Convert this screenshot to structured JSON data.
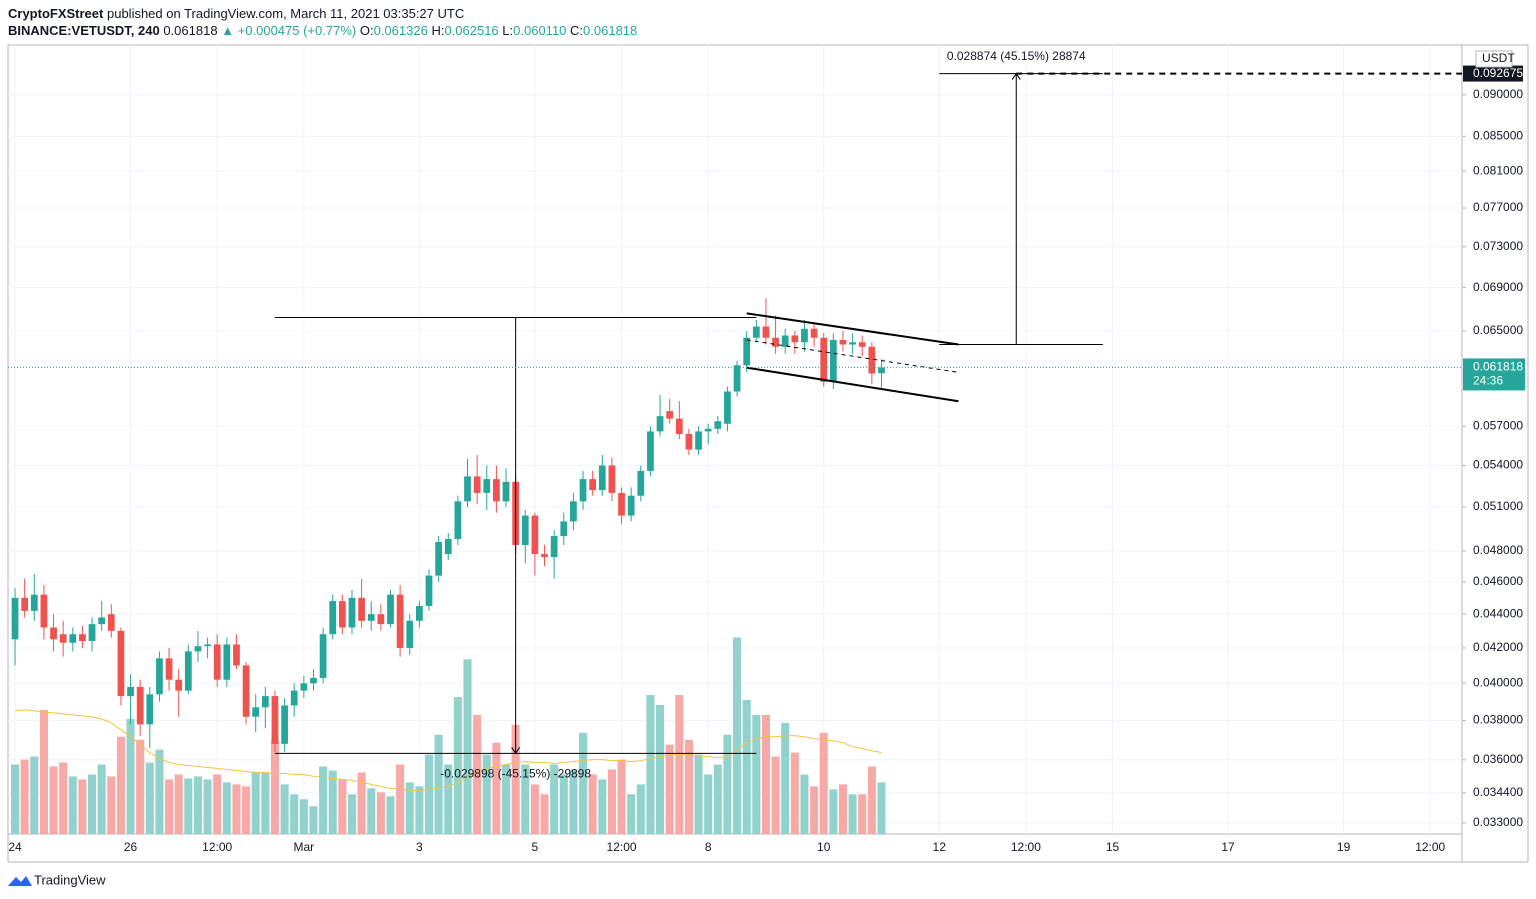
{
  "header": {
    "publisher": "CryptoFXStreet",
    "published": "published on TradingView.com, March 11, 2021 03:35:27 UTC",
    "symbol": "BINANCE:VETUSDT, 240",
    "last": "0.061818",
    "change": "+0.000475 (+0.77%)",
    "ohlc": [
      {
        "key": "O:",
        "value": "0.061326"
      },
      {
        "key": "H:",
        "value": "0.062516"
      },
      {
        "key": "L:",
        "value": "0.060110"
      },
      {
        "key": "C:",
        "value": "0.061818"
      }
    ]
  },
  "chart_data": {
    "type": "candlestick",
    "log_scale": true,
    "grid": true,
    "up_color": "#26a69a",
    "down_color": "#ef5350",
    "volume_up_color": "#92d2cc",
    "volume_down_color": "#f7a9a7",
    "volume_ma_color": "#f5c342",
    "y_axis_label": "USDT",
    "categories": [
      "24",
      null,
      null,
      null,
      null,
      null,
      null,
      null,
      null,
      null,
      null,
      null,
      "26",
      null,
      null,
      null,
      null,
      null,
      null,
      null,
      null,
      "12:00",
      null,
      null,
      null,
      null,
      null,
      null,
      null,
      null,
      "Mar",
      null,
      null,
      null,
      null,
      null,
      null,
      null,
      null,
      null,
      null,
      null,
      "3",
      null,
      null,
      null,
      null,
      null,
      null,
      null,
      null,
      null,
      null,
      null,
      "5",
      null,
      null,
      null,
      null,
      null,
      null,
      null,
      null,
      "12:00",
      null,
      null,
      null,
      null,
      null,
      null,
      null,
      null,
      "8",
      null,
      null,
      null,
      null,
      null,
      null,
      null,
      null,
      null,
      null,
      null,
      "10",
      null,
      null,
      null,
      null,
      null,
      null
    ],
    "open": [
      0.0425,
      0.045,
      0.0442,
      0.0452,
      0.0432,
      0.0428,
      0.0423,
      0.0428,
      0.0424,
      0.0434,
      0.044,
      0.043,
      0.0393,
      0.0398,
      0.0378,
      0.0394,
      0.0414,
      0.0402,
      0.0396,
      0.0418,
      0.0421,
      0.0422,
      0.0402,
      0.0422,
      0.041,
      0.0382,
      0.0387,
      0.0393,
      0.0368,
      0.0388,
      0.0396,
      0.04,
      0.0403,
      0.0428,
      0.0448,
      0.0432,
      0.045,
      0.0436,
      0.044,
      0.0434,
      0.0452,
      0.042,
      0.0436,
      0.0445,
      0.0464,
      0.0478,
      0.0488,
      0.0514,
      0.0532,
      0.052,
      0.053,
      0.0514,
      0.0528,
      0.0484,
      0.0504,
      0.0478,
      0.0476,
      0.049,
      0.05,
      0.0514,
      0.053,
      0.0522,
      0.054,
      0.052,
      0.0504,
      0.0518,
      0.0536,
      0.0566,
      0.0582,
      0.0576,
      0.0564,
      0.0552,
      0.0566,
      0.0568,
      0.0572,
      0.0598,
      0.062,
      0.0644,
      0.0654,
      0.0644,
      0.0636,
      0.0646,
      0.064,
      0.0652,
      0.0644,
      0.0606,
      0.0642,
      0.0638,
      0.064,
      0.0636,
      0.061326
    ],
    "high": [
      0.0456,
      0.0462,
      0.0465,
      0.0458,
      0.044,
      0.0436,
      0.0432,
      0.0433,
      0.0438,
      0.0448,
      0.0446,
      0.0432,
      0.0405,
      0.0402,
      0.0398,
      0.0418,
      0.042,
      0.0408,
      0.0422,
      0.043,
      0.0426,
      0.0428,
      0.0426,
      0.0428,
      0.0412,
      0.0394,
      0.0398,
      0.0396,
      0.0392,
      0.04,
      0.0404,
      0.0408,
      0.0432,
      0.0452,
      0.0452,
      0.0455,
      0.0462,
      0.0448,
      0.0446,
      0.0455,
      0.0458,
      0.044,
      0.0448,
      0.0468,
      0.049,
      0.0492,
      0.0518,
      0.0545,
      0.0548,
      0.054,
      0.054,
      0.0538,
      0.0532,
      0.0508,
      0.0506,
      0.0484,
      0.0494,
      0.0506,
      0.052,
      0.0536,
      0.0536,
      0.0548,
      0.0546,
      0.0524,
      0.0524,
      0.054,
      0.057,
      0.0595,
      0.0592,
      0.059,
      0.0568,
      0.057,
      0.0572,
      0.0578,
      0.0602,
      0.0624,
      0.065,
      0.066,
      0.068,
      0.0664,
      0.0652,
      0.065,
      0.066,
      0.0656,
      0.0648,
      0.0648,
      0.065,
      0.0648,
      0.0646,
      0.064,
      0.062516
    ],
    "low": [
      0.041,
      0.0438,
      0.0436,
      0.0425,
      0.0418,
      0.0415,
      0.0418,
      0.042,
      0.0418,
      0.043,
      0.0426,
      0.0388,
      0.0378,
      0.0372,
      0.0366,
      0.039,
      0.0396,
      0.0382,
      0.0394,
      0.0412,
      0.0414,
      0.0398,
      0.0398,
      0.0408,
      0.0378,
      0.0374,
      0.0376,
      0.0364,
      0.0364,
      0.0382,
      0.0392,
      0.0396,
      0.04,
      0.0425,
      0.0428,
      0.0428,
      0.0432,
      0.043,
      0.043,
      0.0432,
      0.0415,
      0.0416,
      0.0432,
      0.0442,
      0.046,
      0.0474,
      0.0484,
      0.051,
      0.0512,
      0.0508,
      0.0506,
      0.051,
      0.0478,
      0.0472,
      0.0464,
      0.047,
      0.0462,
      0.0484,
      0.0494,
      0.0508,
      0.0518,
      0.0518,
      0.0514,
      0.0498,
      0.05,
      0.0514,
      0.0532,
      0.0562,
      0.0572,
      0.056,
      0.0548,
      0.0548,
      0.0556,
      0.0564,
      0.0566,
      0.0594,
      0.0614,
      0.064,
      0.0638,
      0.063,
      0.063,
      0.063,
      0.0632,
      0.0636,
      0.0602,
      0.06,
      0.0632,
      0.063,
      0.0628,
      0.0604,
      0.06011
    ],
    "close": [
      0.045,
      0.0442,
      0.0452,
      0.0432,
      0.0425,
      0.0423,
      0.0428,
      0.0424,
      0.0434,
      0.0438,
      0.043,
      0.0393,
      0.0398,
      0.0378,
      0.0394,
      0.0414,
      0.0402,
      0.0396,
      0.0418,
      0.0421,
      0.0422,
      0.0402,
      0.0422,
      0.041,
      0.0382,
      0.0387,
      0.0393,
      0.0368,
      0.0388,
      0.0396,
      0.04,
      0.0403,
      0.0428,
      0.0448,
      0.0432,
      0.045,
      0.0436,
      0.044,
      0.0434,
      0.0452,
      0.042,
      0.0436,
      0.0445,
      0.0464,
      0.0486,
      0.0488,
      0.0514,
      0.0532,
      0.052,
      0.053,
      0.0514,
      0.0528,
      0.0484,
      0.0504,
      0.0478,
      0.0476,
      0.049,
      0.05,
      0.0514,
      0.053,
      0.0522,
      0.054,
      0.052,
      0.0504,
      0.0518,
      0.0536,
      0.0566,
      0.0578,
      0.0576,
      0.0564,
      0.0552,
      0.0566,
      0.0568,
      0.0574,
      0.0598,
      0.062,
      0.0644,
      0.0654,
      0.0644,
      0.0636,
      0.0646,
      0.064,
      0.0652,
      0.0644,
      0.0606,
      0.0642,
      0.0638,
      0.064,
      0.0636,
      0.0613,
      0.061818
    ],
    "volume": [
      70,
      75,
      78,
      125,
      68,
      72,
      58,
      55,
      60,
      70,
      58,
      98,
      116,
      95,
      72,
      85,
      55,
      60,
      56,
      58,
      55,
      60,
      52,
      50,
      48,
      62,
      62,
      95,
      50,
      40,
      35,
      28,
      68,
      64,
      55,
      40,
      62,
      46,
      42,
      38,
      70,
      52,
      48,
      80,
      100,
      70,
      138,
      176,
      120,
      80,
      92,
      70,
      110,
      70,
      50,
      40,
      70,
      60,
      65,
      102,
      60,
      55,
      65,
      75,
      40,
      50,
      140,
      130,
      90,
      140,
      95,
      80,
      60,
      70,
      100,
      198,
      135,
      120,
      120,
      78,
      112,
      82,
      60,
      48,
      102,
      45,
      50,
      40,
      40,
      68,
      52
    ],
    "volume_ma": [
      124,
      125,
      124,
      123,
      122,
      121,
      120,
      119,
      118,
      116,
      112,
      105,
      98,
      90,
      82,
      76,
      72,
      70,
      69,
      68,
      67,
      66,
      65,
      64,
      63,
      62,
      62,
      61,
      61,
      60,
      60,
      58,
      57,
      56,
      55,
      54,
      52,
      50,
      48,
      46,
      45,
      44,
      44,
      45,
      46,
      48,
      52,
      58,
      62,
      66,
      68,
      70,
      72,
      73,
      72,
      72,
      71,
      72,
      73,
      74,
      75,
      75,
      74,
      74,
      73,
      74,
      76,
      78,
      80,
      80,
      80,
      79,
      78,
      77,
      78,
      84,
      92,
      96,
      98,
      98,
      99,
      99,
      98,
      96,
      95,
      94,
      92,
      88,
      86,
      84,
      82
    ],
    "xlim": [
      -0.73,
      150.3
    ],
    "xticks": [
      {
        "value": 96,
        "label": "12"
      },
      {
        "value": 105,
        "label": "12:00"
      },
      {
        "value": 114,
        "label": "15"
      },
      {
        "value": 126,
        "label": "17"
      },
      {
        "value": 138,
        "label": "19"
      },
      {
        "value": 147,
        "label": "12:00"
      }
    ],
    "ylim": [
      0.0325,
      0.096
    ],
    "yticks": [
      {
        "value": 0.033,
        "label": "0.033000"
      },
      {
        "value": 0.0344,
        "label": "0.034400"
      },
      {
        "value": 0.036,
        "label": "0.036000"
      },
      {
        "value": 0.038,
        "label": "0.038000"
      },
      {
        "value": 0.04,
        "label": "0.040000"
      },
      {
        "value": 0.042,
        "label": "0.042000"
      },
      {
        "value": 0.044,
        "label": "0.044000"
      },
      {
        "value": 0.046,
        "label": "0.046000"
      },
      {
        "value": 0.048,
        "label": "0.048000"
      },
      {
        "value": 0.051,
        "label": "0.051000"
      },
      {
        "value": 0.054,
        "label": "0.054000"
      },
      {
        "value": 0.057,
        "label": "0.057000"
      },
      {
        "value": 0.065,
        "label": "0.065000"
      },
      {
        "value": 0.069,
        "label": "0.069000"
      },
      {
        "value": 0.073,
        "label": "0.073000"
      },
      {
        "value": 0.077,
        "label": "0.077000"
      },
      {
        "value": 0.081,
        "label": "0.081000"
      },
      {
        "value": 0.085,
        "label": "0.085000"
      },
      {
        "value": 0.09,
        "label": "0.090000"
      }
    ],
    "last_price": 0.061818,
    "countdown": "24:36",
    "drawings": [
      {
        "style": "solid",
        "x": [
          76,
          98
        ],
        "y": [
          0.0666,
          0.0638
        ]
      },
      {
        "style": "solid",
        "x": [
          76,
          98
        ],
        "y": [
          0.0618,
          0.059
        ]
      },
      {
        "style": "dashed",
        "x": [
          76,
          98
        ],
        "y": [
          0.0642,
          0.0614
        ]
      }
    ],
    "measures": [
      {
        "x_from": 27,
        "x_to": 77,
        "x_arrow": 52,
        "from": 0.06622,
        "to": 0.036322,
        "label": "-0.029898 (-45.15%) -29898",
        "extend_right": false
      },
      {
        "x_from": 96,
        "x_to": 113,
        "x_arrow": 104,
        "from": 0.063801,
        "to": 0.092675,
        "label": "0.028874 (45.15%) 28874",
        "extend_right": true
      }
    ]
  },
  "footer": {
    "brand": "TradingView"
  }
}
